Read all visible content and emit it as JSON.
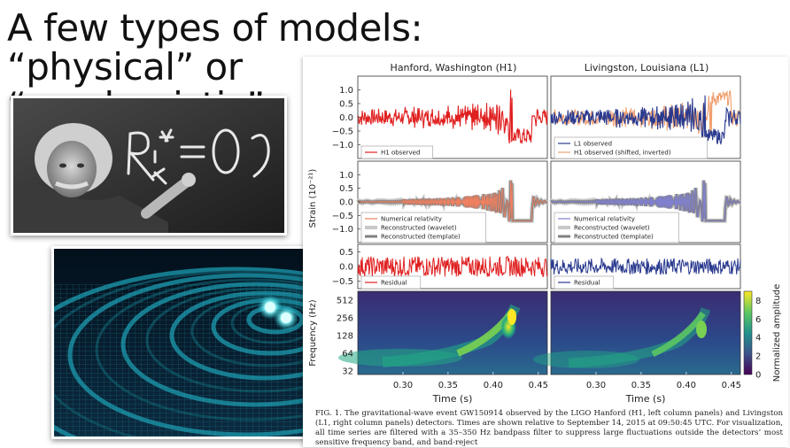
{
  "slide": {
    "title_line1": "A few types of models: “physical” or",
    "title_line2": "“mechanistic”"
  },
  "photo": {
    "chalk_text": "R_ik = 0 ?"
  },
  "figure": {
    "col1_title": "Hanford, Washington (H1)",
    "col2_title": "Livingston, Louisiana (L1)",
    "strain_ylabel": "Strain (10⁻²¹)",
    "freq_ylabel": "Frequency (Hz)",
    "xlabel": "Time (s)",
    "colorbar_label": "Normalized amplitude",
    "colors": {
      "h1": "#e02020",
      "l1": "#2a3a8f",
      "h1_shifted": "#f0a070",
      "nr_h1": "#f08060",
      "nr_l1": "#8080d0",
      "wavelet": "#c8c8c8",
      "template": "#808080"
    },
    "legends": {
      "p1_left": [
        "H1 observed"
      ],
      "p1_right": [
        "L1 observed",
        "H1 observed (shifted, inverted)"
      ],
      "p2": [
        "Numerical relativity",
        "Reconstructed (wavelet)",
        "Reconstructed (template)"
      ],
      "p3": [
        "Residual"
      ]
    },
    "caption": "FIG. 1.    The gravitational-wave event GW150914 observed by the LIGO Hanford (H1, left column panels) and Livingston (L1, right column panels) detectors. Times are shown relative to September 14, 2015 at 09:50:45 UTC. For visualization, all time series are filtered with a 35–350 Hz bandpass filter to suppress large fluctuations outside the detectors’ most sensitive frequency band, and band-reject"
  },
  "chart_data": [
    {
      "type": "line",
      "panel": "strain-observed",
      "xlim": [
        0.25,
        0.46
      ],
      "ylim": [
        -1.5,
        1.5
      ],
      "y_ticks": [
        "1.0",
        "0.5",
        "0.0",
        "−0.5",
        "−1.0"
      ],
      "columns": [
        "H1",
        "L1"
      ],
      "series": [
        {
          "name": "H1 observed",
          "column": "H1"
        },
        {
          "name": "L1 observed",
          "column": "L1"
        },
        {
          "name": "H1 observed (shifted, inverted)",
          "column": "L1"
        }
      ]
    },
    {
      "type": "line",
      "panel": "strain-reconstructed",
      "xlim": [
        0.25,
        0.46
      ],
      "ylim": [
        -1.5,
        1.5
      ],
      "y_ticks": [
        "1.0",
        "0.5",
        "0.0",
        "−0.5",
        "−1.0"
      ],
      "series": [
        {
          "name": "Numerical relativity"
        },
        {
          "name": "Reconstructed (wavelet)"
        },
        {
          "name": "Reconstructed (template)"
        }
      ]
    },
    {
      "type": "line",
      "panel": "residual",
      "xlim": [
        0.25,
        0.46
      ],
      "ylim": [
        -0.75,
        0.75
      ],
      "y_ticks": [
        "0.5",
        "0.0",
        "−0.5"
      ],
      "series": [
        {
          "name": "Residual"
        }
      ]
    },
    {
      "type": "heatmap",
      "panel": "spectrogram",
      "xlim": [
        0.25,
        0.46
      ],
      "x_ticks": [
        "0.30",
        "0.35",
        "0.40",
        "0.45"
      ],
      "y_ticks": [
        "512",
        "256",
        "128",
        "64",
        "32"
      ],
      "scale": "log",
      "colorbar_ticks": [
        "8",
        "6",
        "4",
        "2",
        "0"
      ],
      "colorbar_range": [
        0,
        9
      ]
    }
  ]
}
